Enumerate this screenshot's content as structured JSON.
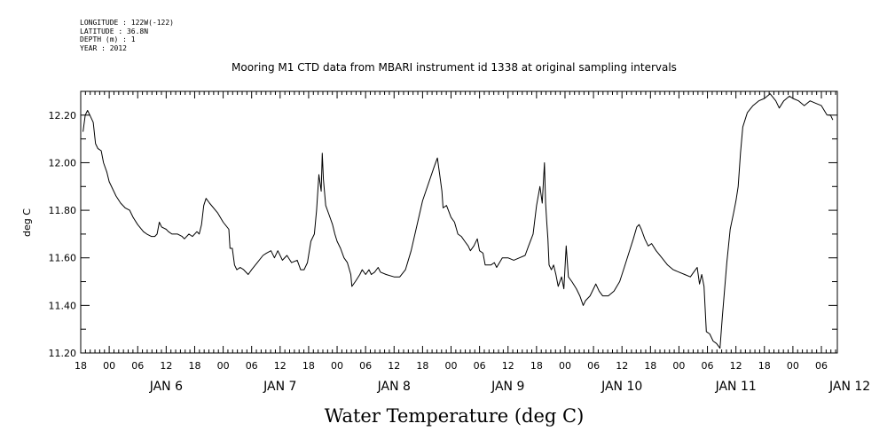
{
  "meta": {
    "longitude": "LONGITUDE : 122W(-122)",
    "latitude": "LATITUDE : 36.8N",
    "depth": "DEPTH (m) : 1",
    "year": "YEAR : 2012"
  },
  "chart_data": {
    "type": "line",
    "title": "Mooring M1 CTD data from MBARI instrument id 1338 at original sampling intervals",
    "xlabel": "Water Temperature (deg C)",
    "ylabel": "deg C",
    "ylim": [
      11.2,
      12.3
    ],
    "xlim": [
      -0.25,
      6.39
    ],
    "x_unit": "days since JAN 6 00:00, 2012",
    "yticks": [
      "11.20",
      "11.40",
      "11.60",
      "11.80",
      "12.00",
      "12.20"
    ],
    "hour_tick_labels": [
      "00",
      "06",
      "12",
      "18"
    ],
    "day_labels": [
      "JAN  6",
      "JAN  7",
      "JAN  8",
      "JAN  9",
      "JAN 10",
      "JAN 11",
      "JAN 12"
    ],
    "grid": false,
    "series": [
      {
        "name": "",
        "points": [
          [
            -0.23,
            12.13
          ],
          [
            -0.21,
            12.2
          ],
          [
            -0.19,
            12.22
          ],
          [
            -0.17,
            12.2
          ],
          [
            -0.14,
            12.17
          ],
          [
            -0.12,
            12.08
          ],
          [
            -0.1,
            12.06
          ],
          [
            -0.07,
            12.05
          ],
          [
            -0.05,
            12.0
          ],
          [
            -0.02,
            11.96
          ],
          [
            0.0,
            11.92
          ],
          [
            0.03,
            11.89
          ],
          [
            0.06,
            11.86
          ],
          [
            0.1,
            11.83
          ],
          [
            0.14,
            11.81
          ],
          [
            0.18,
            11.8
          ],
          [
            0.21,
            11.77
          ],
          [
            0.25,
            11.74
          ],
          [
            0.3,
            11.71
          ],
          [
            0.33,
            11.7
          ],
          [
            0.37,
            11.69
          ],
          [
            0.4,
            11.69
          ],
          [
            0.42,
            11.7
          ],
          [
            0.44,
            11.75
          ],
          [
            0.46,
            11.73
          ],
          [
            0.5,
            11.72
          ],
          [
            0.52,
            11.71
          ],
          [
            0.55,
            11.7
          ],
          [
            0.6,
            11.7
          ],
          [
            0.64,
            11.69
          ],
          [
            0.66,
            11.68
          ],
          [
            0.7,
            11.7
          ],
          [
            0.73,
            11.69
          ],
          [
            0.77,
            11.71
          ],
          [
            0.79,
            11.7
          ],
          [
            0.81,
            11.74
          ],
          [
            0.83,
            11.82
          ],
          [
            0.85,
            11.85
          ],
          [
            0.88,
            11.83
          ],
          [
            0.95,
            11.79
          ],
          [
            1.0,
            11.75
          ],
          [
            1.05,
            11.72
          ],
          [
            1.06,
            11.64
          ],
          [
            1.08,
            11.64
          ],
          [
            1.1,
            11.57
          ],
          [
            1.12,
            11.55
          ],
          [
            1.15,
            11.56
          ],
          [
            1.18,
            11.55
          ],
          [
            1.22,
            11.53
          ],
          [
            1.25,
            11.55
          ],
          [
            1.3,
            11.58
          ],
          [
            1.35,
            11.61
          ],
          [
            1.38,
            11.62
          ],
          [
            1.42,
            11.63
          ],
          [
            1.45,
            11.6
          ],
          [
            1.48,
            11.63
          ],
          [
            1.52,
            11.59
          ],
          [
            1.56,
            11.61
          ],
          [
            1.6,
            11.58
          ],
          [
            1.65,
            11.59
          ],
          [
            1.68,
            11.55
          ],
          [
            1.71,
            11.55
          ],
          [
            1.74,
            11.58
          ],
          [
            1.77,
            11.67
          ],
          [
            1.8,
            11.7
          ],
          [
            1.82,
            11.8
          ],
          [
            1.84,
            11.95
          ],
          [
            1.86,
            11.88
          ],
          [
            1.87,
            12.04
          ],
          [
            1.88,
            11.93
          ],
          [
            1.9,
            11.82
          ],
          [
            1.93,
            11.78
          ],
          [
            1.96,
            11.74
          ],
          [
            1.98,
            11.7
          ],
          [
            2.0,
            11.67
          ],
          [
            2.03,
            11.64
          ],
          [
            2.06,
            11.6
          ],
          [
            2.09,
            11.58
          ],
          [
            2.12,
            11.53
          ],
          [
            2.13,
            11.48
          ],
          [
            2.16,
            11.5
          ],
          [
            2.2,
            11.53
          ],
          [
            2.22,
            11.55
          ],
          [
            2.25,
            11.53
          ],
          [
            2.28,
            11.55
          ],
          [
            2.3,
            11.53
          ],
          [
            2.33,
            11.54
          ],
          [
            2.36,
            11.56
          ],
          [
            2.38,
            11.54
          ],
          [
            2.43,
            11.53
          ],
          [
            2.5,
            11.52
          ],
          [
            2.55,
            11.52
          ],
          [
            2.6,
            11.55
          ],
          [
            2.65,
            11.63
          ],
          [
            2.75,
            11.84
          ],
          [
            2.85,
            11.98
          ],
          [
            2.88,
            12.02
          ],
          [
            2.9,
            11.95
          ],
          [
            2.92,
            11.88
          ],
          [
            2.93,
            11.81
          ],
          [
            2.96,
            11.82
          ],
          [
            3.0,
            11.77
          ],
          [
            3.03,
            11.75
          ],
          [
            3.06,
            11.7
          ],
          [
            3.09,
            11.69
          ],
          [
            3.12,
            11.67
          ],
          [
            3.15,
            11.65
          ],
          [
            3.17,
            11.63
          ],
          [
            3.2,
            11.65
          ],
          [
            3.23,
            11.68
          ],
          [
            3.25,
            11.63
          ],
          [
            3.28,
            11.62
          ],
          [
            3.3,
            11.57
          ],
          [
            3.35,
            11.57
          ],
          [
            3.38,
            11.58
          ],
          [
            3.4,
            11.56
          ],
          [
            3.45,
            11.6
          ],
          [
            3.5,
            11.6
          ],
          [
            3.55,
            11.59
          ],
          [
            3.6,
            11.6
          ],
          [
            3.65,
            11.61
          ],
          [
            3.68,
            11.65
          ],
          [
            3.72,
            11.7
          ],
          [
            3.75,
            11.82
          ],
          [
            3.78,
            11.9
          ],
          [
            3.8,
            11.83
          ],
          [
            3.82,
            12.0
          ],
          [
            3.83,
            11.83
          ],
          [
            3.84,
            11.75
          ],
          [
            3.85,
            11.68
          ],
          [
            3.86,
            11.57
          ],
          [
            3.88,
            11.55
          ],
          [
            3.9,
            11.57
          ],
          [
            3.92,
            11.53
          ],
          [
            3.94,
            11.48
          ],
          [
            3.97,
            11.52
          ],
          [
            3.99,
            11.47
          ],
          [
            4.01,
            11.65
          ],
          [
            4.03,
            11.52
          ],
          [
            4.06,
            11.5
          ],
          [
            4.1,
            11.47
          ],
          [
            4.13,
            11.44
          ],
          [
            4.16,
            11.4
          ],
          [
            4.18,
            11.42
          ],
          [
            4.22,
            11.44
          ],
          [
            4.25,
            11.47
          ],
          [
            4.27,
            11.49
          ],
          [
            4.3,
            11.46
          ],
          [
            4.33,
            11.44
          ],
          [
            4.38,
            11.44
          ],
          [
            4.43,
            11.46
          ],
          [
            4.48,
            11.5
          ],
          [
            4.52,
            11.56
          ],
          [
            4.56,
            11.62
          ],
          [
            4.6,
            11.68
          ],
          [
            4.63,
            11.73
          ],
          [
            4.65,
            11.74
          ],
          [
            4.67,
            11.72
          ],
          [
            4.7,
            11.68
          ],
          [
            4.73,
            11.65
          ],
          [
            4.76,
            11.66
          ],
          [
            4.8,
            11.63
          ],
          [
            4.85,
            11.6
          ],
          [
            4.9,
            11.57
          ],
          [
            4.95,
            11.55
          ],
          [
            5.0,
            11.54
          ],
          [
            5.05,
            11.53
          ],
          [
            5.1,
            11.52
          ],
          [
            5.13,
            11.54
          ],
          [
            5.16,
            11.56
          ],
          [
            5.18,
            11.49
          ],
          [
            5.2,
            11.53
          ],
          [
            5.22,
            11.48
          ],
          [
            5.24,
            11.29
          ],
          [
            5.27,
            11.28
          ],
          [
            5.3,
            11.25
          ],
          [
            5.33,
            11.24
          ],
          [
            5.36,
            11.22
          ],
          [
            5.38,
            11.35
          ],
          [
            5.42,
            11.58
          ],
          [
            5.45,
            11.72
          ],
          [
            5.48,
            11.79
          ],
          [
            5.5,
            11.84
          ],
          [
            5.52,
            11.9
          ],
          [
            5.54,
            12.04
          ],
          [
            5.56,
            12.15
          ],
          [
            5.6,
            12.21
          ],
          [
            5.65,
            12.24
          ],
          [
            5.7,
            12.26
          ],
          [
            5.75,
            12.27
          ],
          [
            5.8,
            12.29
          ],
          [
            5.85,
            12.26
          ],
          [
            5.88,
            12.23
          ],
          [
            5.92,
            12.26
          ],
          [
            5.97,
            12.28
          ],
          [
            6.0,
            12.27
          ],
          [
            6.05,
            12.26
          ],
          [
            6.1,
            12.24
          ],
          [
            6.15,
            12.26
          ],
          [
            6.2,
            12.25
          ],
          [
            6.25,
            12.24
          ],
          [
            6.3,
            12.2
          ],
          [
            6.33,
            12.2
          ],
          [
            6.35,
            12.18
          ]
        ]
      }
    ]
  }
}
